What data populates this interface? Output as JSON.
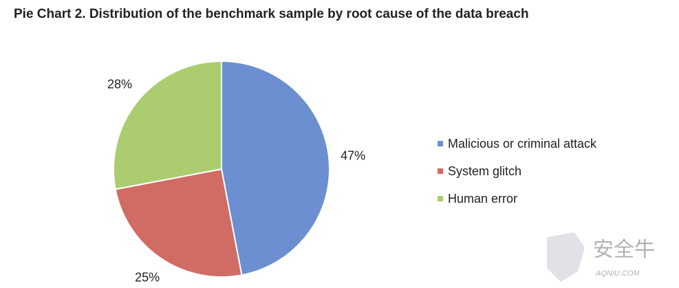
{
  "chart_data": {
    "type": "pie",
    "title": "Pie Chart 2. Distribution of the benchmark sample by root cause of the data breach",
    "categories": [
      "Malicious or criminal attack",
      "System glitch",
      "Human error"
    ],
    "values": [
      47,
      25,
      28
    ],
    "value_labels": [
      "47%",
      "25%",
      "28%"
    ],
    "colors": [
      "#6b8fd0",
      "#d06c64",
      "#abcd70"
    ],
    "legend": "right"
  },
  "watermark": {
    "text": "安全牛",
    "subtext": "AQNIU.COM"
  }
}
